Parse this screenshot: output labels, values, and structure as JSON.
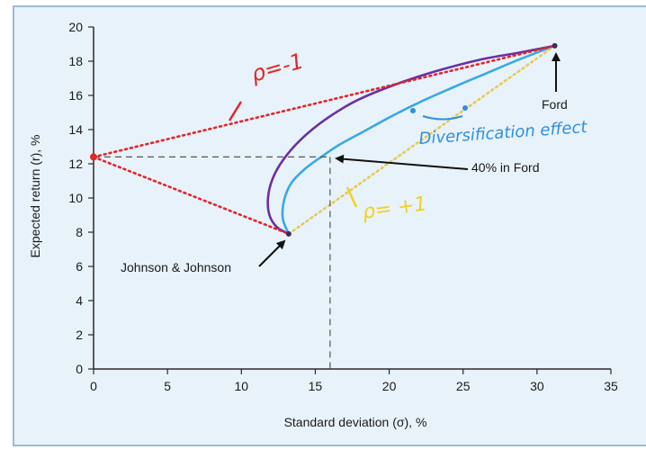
{
  "chart_data": {
    "type": "line",
    "xlabel": "Standard deviation (σ), %",
    "ylabel": "Expected return (r), %",
    "xlim": [
      0,
      35
    ],
    "ylim": [
      0,
      20
    ],
    "x_ticks": [
      "0",
      "5",
      "10",
      "15",
      "20",
      "25",
      "30",
      "35"
    ],
    "y_ticks": [
      "0",
      "2",
      "4",
      "6",
      "8",
      "10",
      "12",
      "14",
      "16",
      "18",
      "20"
    ],
    "grid": false,
    "points": {
      "jnj": {
        "x": 13.2,
        "y": 7.9
      },
      "ford": {
        "x": 31.2,
        "y": 18.9
      },
      "risk_free": {
        "x": 0,
        "y": 12.4
      },
      "forty_ford": {
        "x": 16.0,
        "y": 12.4
      }
    },
    "series": [
      {
        "color": "#3aa8e6",
        "x": [
          13.2,
          12.8,
          12.9,
          13.4,
          14.3,
          15.4,
          16.6,
          18.3,
          20.2,
          22.3,
          24.4,
          26.6,
          28.8,
          31.2
        ],
        "y": [
          7.9,
          8.8,
          9.9,
          10.9,
          11.7,
          12.4,
          13.1,
          13.9,
          14.8,
          15.7,
          16.5,
          17.3,
          18.1,
          18.9
        ]
      },
      {
        "color": "#6b2fa3",
        "x": [
          13.2,
          12.4,
          11.9,
          11.8,
          12.1,
          12.8,
          14.0,
          15.7,
          17.8,
          20.3,
          23.1,
          26.2,
          28.8,
          31.2
        ],
        "y": [
          7.9,
          8.3,
          9.0,
          10.0,
          11.1,
          12.2,
          13.4,
          14.6,
          15.7,
          16.6,
          17.4,
          18.1,
          18.5,
          18.9
        ]
      },
      {
        "color": "#e8c95a",
        "style": "dotted",
        "x": [
          13.2,
          31.2
        ],
        "y": [
          7.9,
          18.9
        ]
      },
      {
        "color": "#e0282a",
        "style": "dotted",
        "x": [
          0,
          31.2
        ],
        "y": [
          12.4,
          18.9
        ]
      },
      {
        "color": "#e0282a",
        "style": "dotted",
        "x": [
          0,
          13.2
        ],
        "y": [
          12.4,
          7.9
        ]
      }
    ],
    "annotations": {
      "ford": "Ford",
      "jnj": "Johnson & Johnson",
      "forty_ford": "40% in Ford",
      "rho_minus": "ρ=-1",
      "rho_plus": "ρ= +1",
      "diversification": "Diversification effect"
    },
    "colors": {
      "axis": "#2b2b2b",
      "background": "#e8f2fa",
      "annotation_red": "#e0282a",
      "annotation_blue": "#2f8fe0",
      "annotation_yellow": "#f2d21b"
    }
  }
}
